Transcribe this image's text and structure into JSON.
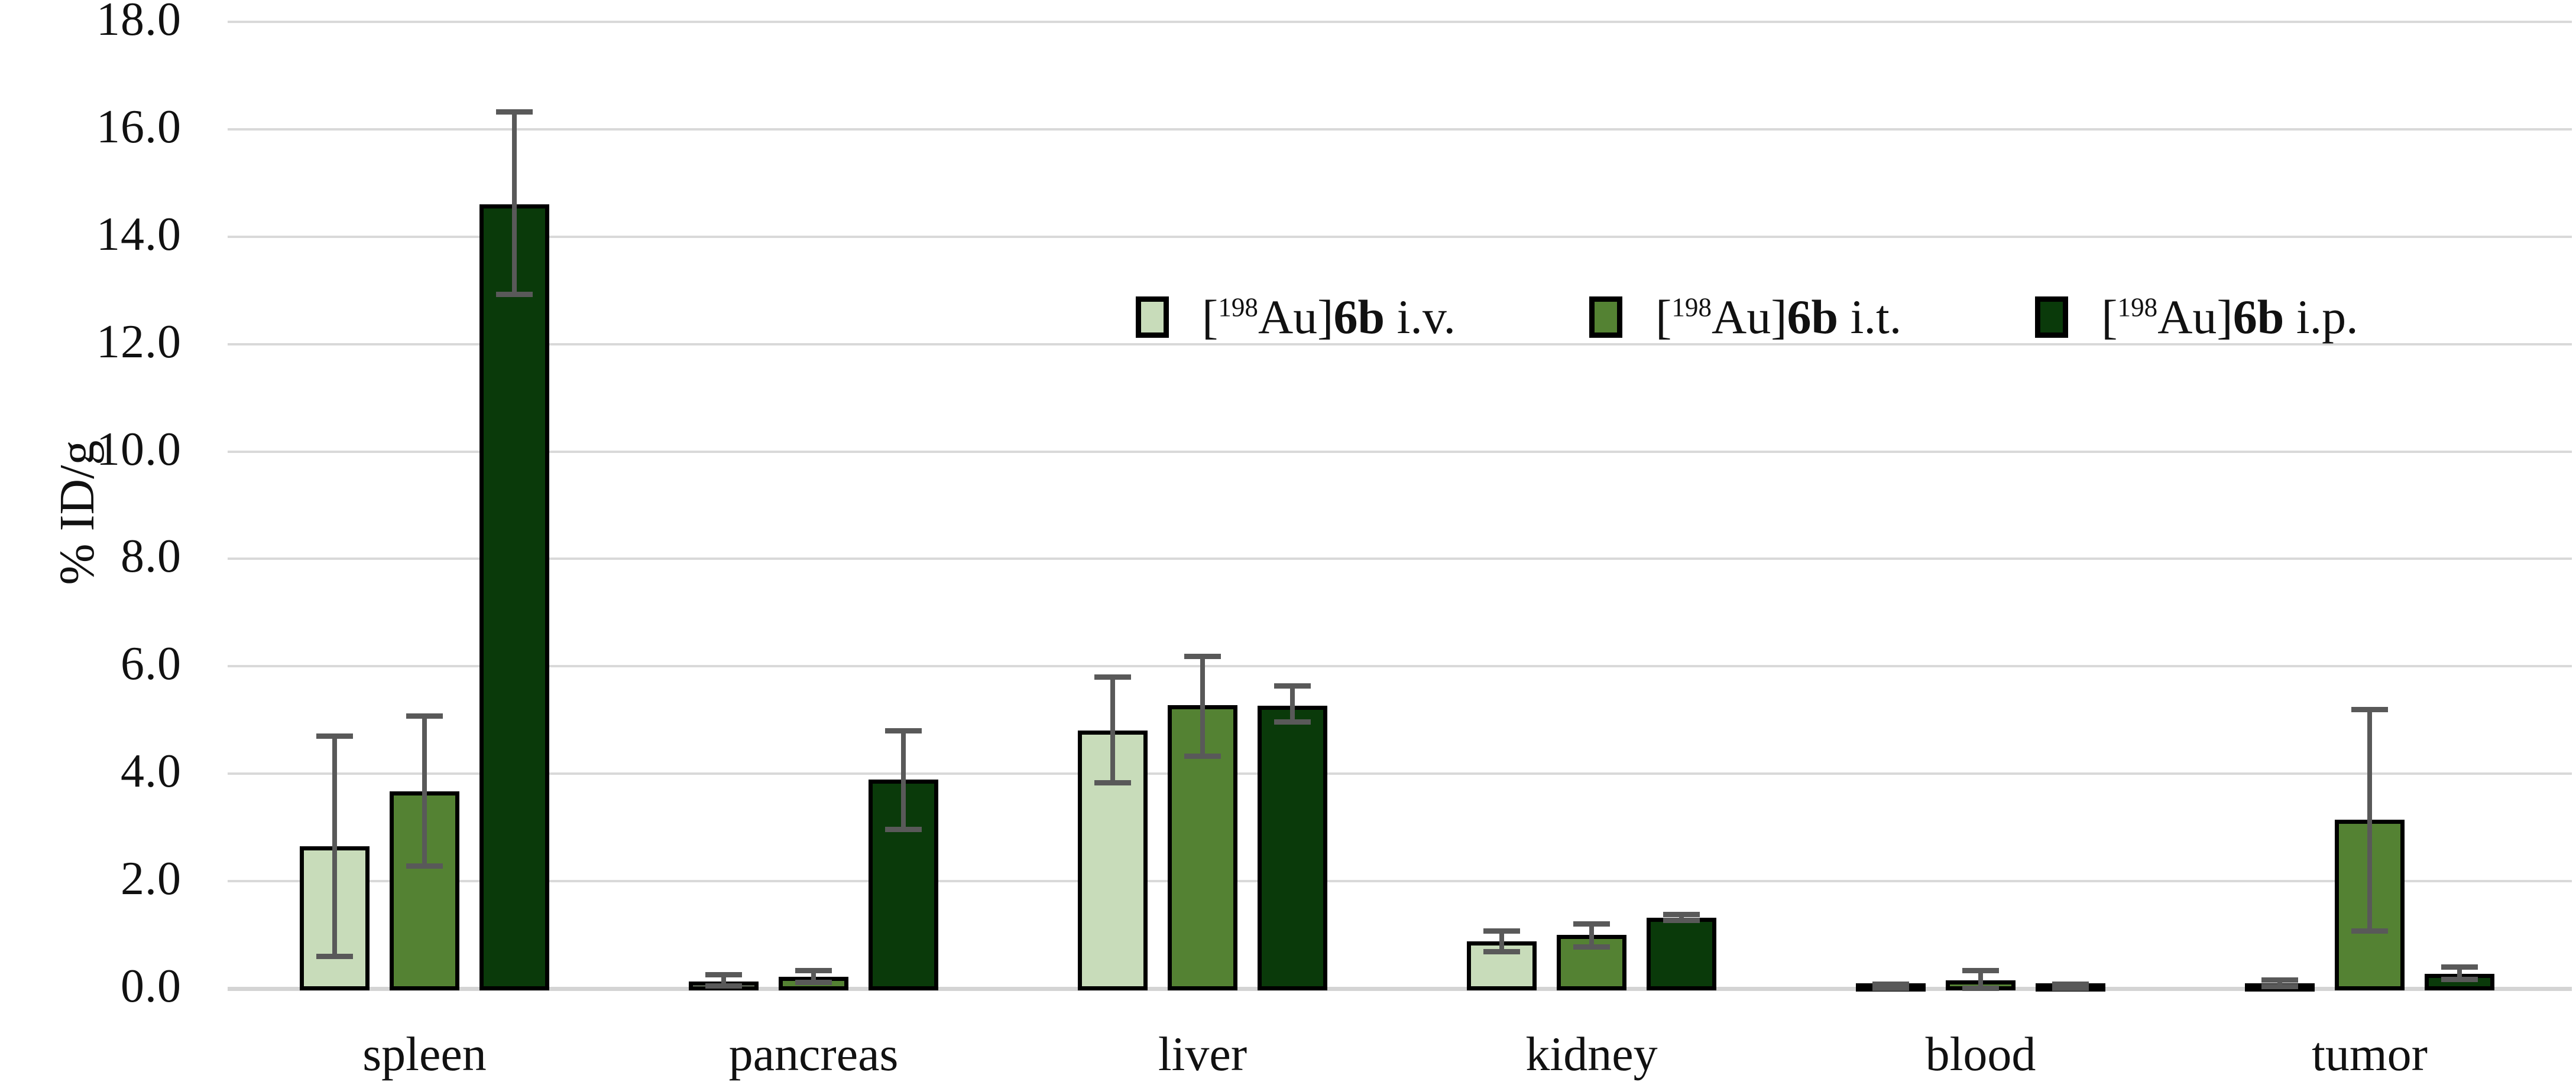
{
  "chart_data": {
    "type": "bar",
    "title": "",
    "ylabel": "% ID/g",
    "xlabel": "",
    "ylim": [
      0,
      18
    ],
    "ytick_step": 2,
    "ytick_labels": [
      "0.0",
      "2.0",
      "4.0",
      "6.0",
      "8.0",
      "10.0",
      "12.0",
      "14.0",
      "16.0",
      "18.0"
    ],
    "grid": "horizontal",
    "legend_position": "upper-right-inside",
    "categories": [
      "spleen",
      "pancreas",
      "liver",
      "kidney",
      "blood",
      "tumor"
    ],
    "series": [
      {
        "key": "iv",
        "name": "[198Au]6b i.v.",
        "label_parts": {
          "open": "[",
          "isotope": "198",
          "element": "Au]",
          "compound": "6b",
          "route": " i.v."
        },
        "color": "#c8dcba",
        "values": [
          2.65,
          0.13,
          4.8,
          0.88,
          0.04,
          0.1
        ],
        "err_up": [
          2.05,
          0.13,
          1.0,
          0.19,
          0.04,
          0.06
        ],
        "err_down": [
          2.05,
          0.08,
          0.97,
          0.19,
          0.03,
          0.06
        ]
      },
      {
        "key": "it",
        "name": "[198Au]6b i.t.",
        "label_parts": {
          "open": "[",
          "isotope": "198",
          "element": "Au]",
          "compound": "6b",
          "route": " i.t."
        },
        "color": "#548233",
        "values": [
          3.67,
          0.22,
          5.28,
          1.0,
          0.15,
          3.15
        ],
        "err_up": [
          1.4,
          0.11,
          0.9,
          0.2,
          0.18,
          2.05
        ],
        "err_down": [
          1.39,
          0.1,
          0.95,
          0.23,
          0.14,
          2.08
        ]
      },
      {
        "key": "ip",
        "name": "[198Au]6b i.p.",
        "label_parts": {
          "open": "[",
          "isotope": "198",
          "element": "Au]",
          "compound": "6b",
          "route": " i.p."
        },
        "color": "#0a3a0a",
        "values": [
          14.6,
          3.89,
          5.27,
          1.32,
          0.04,
          0.28
        ],
        "err_up": [
          1.72,
          0.91,
          0.36,
          0.06,
          0.04,
          0.12
        ],
        "err_down": [
          1.68,
          0.93,
          0.31,
          0.05,
          0.03,
          0.11
        ]
      }
    ],
    "colors": {
      "background": "#ffffff",
      "gridline": "#d9d9d9",
      "axis_line": "#d4d4d4",
      "bar_border": "#000000",
      "error_bar": "#595959",
      "text": "#111111"
    }
  }
}
